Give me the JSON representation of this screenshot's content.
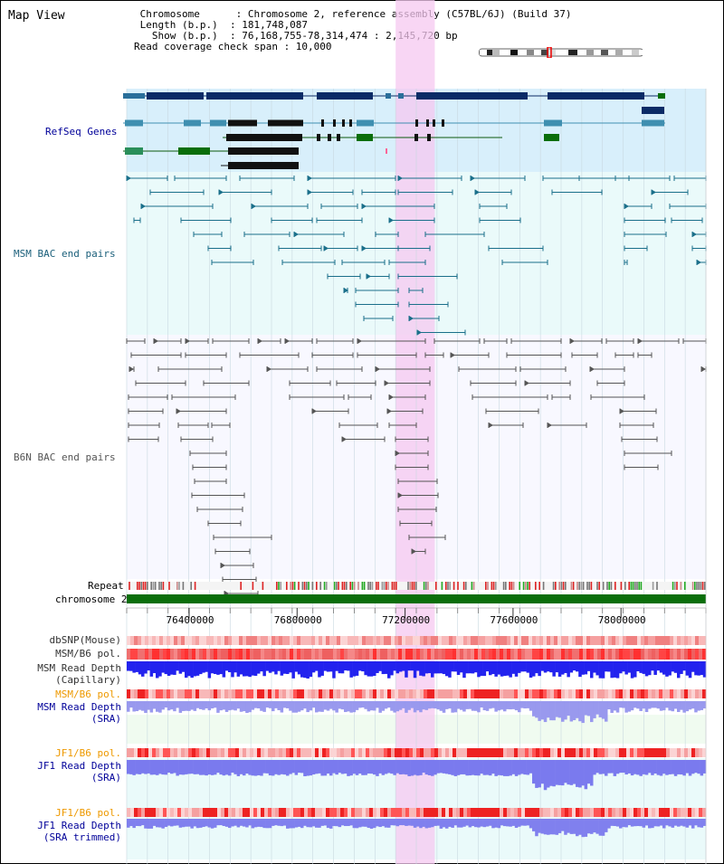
{
  "title": "Map View",
  "info": {
    "rows": [
      {
        "key": "Chromosome      ",
        "sep": ": ",
        "value": "Chromosome 2, reference assembly (C57BL/6J) (Build 37)",
        "indent": " "
      },
      {
        "key": "Length (b.p.)  ",
        "sep": ": ",
        "value": "181,748,087",
        "indent": " "
      },
      {
        "key": "Show (b.p.)  ",
        "sep": ": ",
        "value": "76,168,755-78,314,474 : 2,145,720 bp",
        "indent": "   "
      },
      {
        "key": "Read coverage check span ",
        "sep": ": ",
        "value": "10,000",
        "indent": ""
      }
    ]
  },
  "tracks": {
    "refseq": {
      "label": "RefSeq Genes",
      "color": "#1a1a99"
    },
    "msm_bac": {
      "label": "MSM BAC end pairs",
      "color": "#1a5f7a"
    },
    "b6n_bac": {
      "label": "B6N BAC end pairs",
      "color": "#555555"
    },
    "repeat": {
      "label": "Repeat"
    },
    "chromosome": {
      "label": "chromosome 2"
    },
    "dbsnp": {
      "label": "dbSNP(Mouse)"
    },
    "msm_pol": {
      "label": "MSM/B6 pol."
    },
    "msm_depth_cap": {
      "label1": "MSM Read Depth",
      "label2": "(Capillary)"
    },
    "msm_pol2": {
      "label": "MSM/B6 pol."
    },
    "msm_depth_sra": {
      "label1": "MSM Read Depth",
      "label2": "(SRA)"
    },
    "jf1_pol": {
      "label": "JF1/B6 pol."
    },
    "jf1_depth_sra": {
      "label1": "JF1 Read Depth",
      "label2": "(SRA)"
    },
    "jf1_pol2": {
      "label": "JF1/B6 pol."
    },
    "jf1_depth_trim": {
      "label1": "JF1 Read Depth",
      "label2": "(SRA trimmed)"
    }
  },
  "axis": {
    "start": 76168755,
    "end": 78314474,
    "ticks": [
      "76400000",
      "76800000",
      "77200000",
      "77600000",
      "78000000"
    ]
  },
  "highlight": {
    "start": 77165000,
    "end": 77310000
  },
  "colors": {
    "refseq_bg": "#d8effb",
    "msm_bg": "#eafafa",
    "b6n_bg": "#f8f8ff",
    "highlight": "#f5c8f0",
    "gene_dark": "#0b2b66",
    "gene_mid": "#3f8fb0",
    "gene_green": "#0a6e0a",
    "chrom_green": "#0a6e0a",
    "depth_blue": "#2222ee",
    "depth_light": "#8888ee",
    "label_dark": "#333333",
    "label_orange": "#ee9900",
    "label_blue": "#000099"
  }
}
